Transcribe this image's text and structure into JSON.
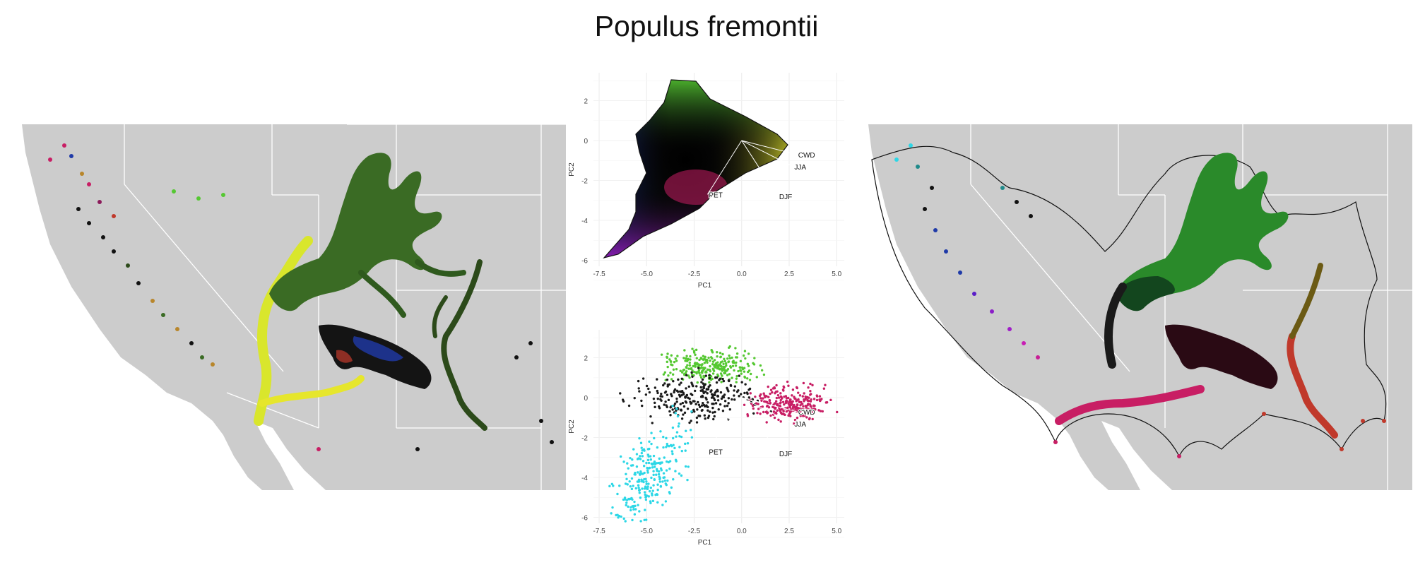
{
  "title": "Populus fremontii",
  "chart_data": [
    {
      "type": "scatter",
      "panel": "pca-top",
      "xlabel": "PC1",
      "ylabel": "PC2",
      "xlim": [
        -7.8,
        5.4
      ],
      "ylim": [
        -6.3,
        3.4
      ],
      "x_ticks": [
        "-7.5",
        "-5.0",
        "-2.5",
        "0.0",
        "2.5",
        "5.0"
      ],
      "x_tick_values": [
        -7.5,
        -5.0,
        -2.5,
        0.0,
        2.5,
        5.0
      ],
      "y_ticks": [
        "2",
        "0",
        "-2",
        "-4",
        "-6"
      ],
      "y_tick_values": [
        2,
        0,
        -2,
        -4,
        -6
      ],
      "grid": true,
      "fill": "continuous color gradient over PC space",
      "vectors": [
        {
          "label": "CWD",
          "x": 2.9,
          "y": -0.7
        },
        {
          "label": "JJA",
          "x": 2.7,
          "y": -1.3
        },
        {
          "label": "DJF",
          "x": 1.9,
          "y": -2.8
        },
        {
          "label": "PET",
          "x": -1.8,
          "y": -2.7
        }
      ]
    },
    {
      "type": "scatter",
      "panel": "pca-bottom",
      "xlabel": "PC1",
      "ylabel": "PC2",
      "xlim": [
        -7.8,
        5.4
      ],
      "ylim": [
        -6.3,
        3.4
      ],
      "x_ticks": [
        "-7.5",
        "-5.0",
        "-2.5",
        "0.0",
        "2.5",
        "5.0"
      ],
      "x_tick_values": [
        -7.5,
        -5.0,
        -2.5,
        0.0,
        2.5,
        5.0
      ],
      "y_ticks": [
        "2",
        "0",
        "-2",
        "-4",
        "-6"
      ],
      "y_tick_values": [
        2,
        0,
        -2,
        -4,
        -6
      ],
      "grid": true,
      "clusters": [
        {
          "color": "#55c832",
          "x": -1.5,
          "y": 1.6
        },
        {
          "color": "#1a1a1a",
          "x": -2.2,
          "y": 0.0
        },
        {
          "color": "#c81e64",
          "x": 2.6,
          "y": -0.3
        },
        {
          "color": "#2dd7e6",
          "x": -4.8,
          "y": -3.8
        }
      ],
      "vectors": [
        {
          "label": "CWD",
          "x": 2.9,
          "y": -0.7
        },
        {
          "label": "JJA",
          "x": 2.7,
          "y": -1.3
        },
        {
          "label": "DJF",
          "x": 1.9,
          "y": -2.8
        },
        {
          "label": "PET",
          "x": -1.8,
          "y": -2.7
        }
      ]
    },
    {
      "type": "map",
      "panel": "map-left",
      "background_color": "#cccccc"
    },
    {
      "type": "map",
      "panel": "map-right",
      "background_color": "#cccccc"
    }
  ]
}
